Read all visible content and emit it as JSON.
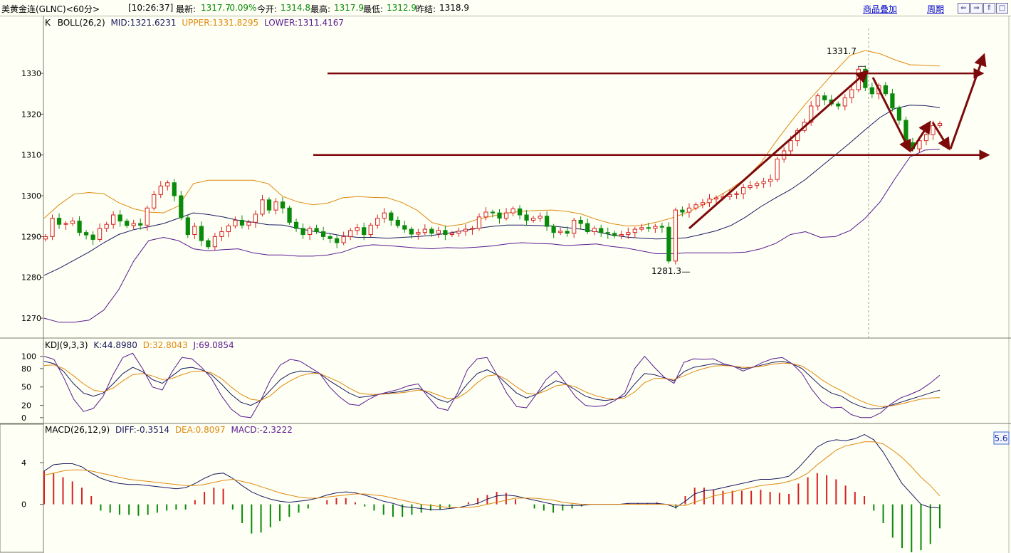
{
  "header": {
    "instrument": "美黄金连(GLNC)<60分>",
    "time": "[10:26:37]",
    "latest_label": "最新:",
    "latest_value": "1317.7",
    "change": "-0.09%",
    "open_label": "今开:",
    "open_value": "1314.8",
    "high_label": "最高:",
    "high_value": "1317.9",
    "low_label": "最低:",
    "low_value": "1312.9",
    "prev_label": "昨结:",
    "prev_value": "1318.9",
    "overlay_link": "商品叠加",
    "period_link": "周期",
    "buttons": [
      "⇐",
      "⇒",
      "⇑",
      "□"
    ]
  },
  "colors": {
    "bg": "#fefff5",
    "grid": "#c8c8b0",
    "up": "#d82020",
    "down": "#0a8a0a",
    "mid": "#1a1a60",
    "upper": "#e08a10",
    "lower": "#5a1a90",
    "arrow": "#7d0a0a"
  },
  "chart_data": [
    {
      "type": "candlestick",
      "indicator": "K",
      "legend": {
        "name": "K",
        "boll": "BOLL(26,2)",
        "mid": "MID:1321.6231",
        "upper": "UPPER:1331.8295",
        "lower": "LOWER:1311.4167"
      },
      "y_ticks": [
        1270,
        1280,
        1290,
        1300,
        1310,
        1320,
        1330
      ],
      "ylim": [
        1266,
        1341
      ],
      "annotations": [
        {
          "text": "1331.7",
          "value": 1331.7
        },
        {
          "text": "1281.3",
          "value": 1281.3
        }
      ],
      "horizontal_lines": [
        1330,
        1310
      ],
      "series": [
        {
          "name": "MID",
          "values": [
            1280.5,
            1282.2,
            1284.2,
            1286.2,
            1288.5,
            1290.5,
            1291.7,
            1292.4,
            1293.2,
            1294.5,
            1295.8,
            1295.4,
            1294.8,
            1294.0,
            1293.5,
            1292.9,
            1292.8,
            1292.0,
            1291.3,
            1290.8,
            1290.2,
            1289.8,
            1289.8,
            1289.6,
            1289.8,
            1290.0,
            1290.3,
            1290.8,
            1291.4,
            1292.0,
            1292.5,
            1292.8,
            1292.8,
            1292.7,
            1292.6,
            1292.2,
            1291.8,
            1291.2,
            1290.4,
            1289.9,
            1289.6,
            1289.4,
            1289.5,
            1289.7,
            1290.5,
            1291.4,
            1292.7,
            1294.8,
            1297.3,
            1299.5,
            1301.5,
            1304.0,
            1307.0,
            1310.0,
            1313.0,
            1316.2,
            1319.2,
            1321.4,
            1322.2,
            1322.1,
            1321.6
          ]
        },
        {
          "name": "UPPER",
          "values": [
            1294.5,
            1297.8,
            1300.4,
            1300.8,
            1300.5,
            1298.3,
            1296.8,
            1296.0,
            1295.8,
            1297.5,
            1303.0,
            1303.8,
            1303.8,
            1303.8,
            1303.8,
            1303.0,
            1299.8,
            1298.5,
            1297.8,
            1298.2,
            1299.5,
            1299.8,
            1299.6,
            1299.5,
            1298.3,
            1296.4,
            1293.4,
            1292.5,
            1293.0,
            1294.2,
            1295.0,
            1295.8,
            1296.2,
            1296.4,
            1296.5,
            1296.2,
            1295.5,
            1294.2,
            1293.2,
            1292.6,
            1292.7,
            1293.5,
            1294.5,
            1295.8,
            1297.5,
            1299.5,
            1301.7,
            1304.3,
            1308.0,
            1313.2,
            1318.0,
            1322.5,
            1326.5,
            1330.6,
            1334.4,
            1335.6,
            1334.8,
            1333.3,
            1332.1,
            1332.0,
            1331.8
          ]
        },
        {
          "name": "LOWER",
          "values": [
            1270.0,
            1269.0,
            1269.0,
            1269.5,
            1272.0,
            1277.0,
            1284.0,
            1289.0,
            1289.8,
            1289.0,
            1287.0,
            1286.5,
            1286.8,
            1287.0,
            1286.0,
            1285.5,
            1285.5,
            1285.2,
            1285.2,
            1285.5,
            1286.2,
            1287.5,
            1288.0,
            1287.8,
            1287.5,
            1287.2,
            1287.0,
            1287.3,
            1287.2,
            1287.4,
            1287.7,
            1288.2,
            1288.5,
            1288.3,
            1288.2,
            1287.8,
            1288.0,
            1288.2,
            1287.6,
            1287.2,
            1286.5,
            1285.8,
            1285.8,
            1286.0,
            1286.0,
            1286.0,
            1286.0,
            1286.2,
            1287.0,
            1288.3,
            1290.5,
            1291.2,
            1289.8,
            1290.0,
            1291.5,
            1294.5,
            1298.5,
            1304.2,
            1309.5,
            1311.2,
            1311.4
          ]
        },
        {
          "name": "close",
          "values": [
            1290.0,
            1294.5,
            1293.0,
            1293.2,
            1293.8,
            1291.0,
            1290.4,
            1289.3,
            1292.0,
            1293.0,
            1295.3,
            1293.8,
            1292.7,
            1293.2,
            1292.8,
            1297.0,
            1300.3,
            1302.4,
            1303.2,
            1300.0,
            1294.6,
            1290.5,
            1292.5,
            1289.0,
            1287.5,
            1290.0,
            1291.2,
            1292.6,
            1294.0,
            1292.8,
            1293.5,
            1295.5,
            1299.0,
            1296.5,
            1298.5,
            1297.0,
            1293.5,
            1292.0,
            1290.5,
            1292.0,
            1291.2,
            1290.0,
            1289.5,
            1288.5,
            1290.0,
            1291.5,
            1292.2,
            1290.5,
            1292.8,
            1294.5,
            1295.8,
            1294.0,
            1292.7,
            1291.8,
            1290.6,
            1291.0,
            1291.8,
            1290.8,
            1291.5,
            1290.5,
            1290.8,
            1291.3,
            1291.8,
            1292.0,
            1294.8,
            1296.0,
            1295.8,
            1294.5,
            1295.8,
            1296.8,
            1295.3,
            1294.0,
            1294.5,
            1295.0,
            1292.5,
            1291.0,
            1291.3,
            1290.8,
            1294.0,
            1293.2,
            1291.2,
            1292.0,
            1291.0,
            1290.8,
            1290.2,
            1290.5,
            1291.0,
            1291.8,
            1292.2,
            1292.0,
            1292.5,
            1292.3,
            1284.0,
            1296.5,
            1296.0,
            1297.0,
            1297.8,
            1298.3,
            1299.2,
            1299.5,
            1299.8,
            1300.3,
            1300.5,
            1302.0,
            1302.5,
            1303.0,
            1303.5,
            1304.0,
            1309.0,
            1311.0,
            1313.5,
            1316.0,
            1318.0,
            1322.0,
            1324.5,
            1323.5,
            1322.5,
            1322.0,
            1324.0,
            1326.0,
            1331.0,
            1326.5,
            1325.0,
            1327.0,
            1325.0,
            1321.5,
            1318.5,
            1313.0,
            1311.5,
            1313.5,
            1315.0,
            1317.2,
            1317.7
          ]
        }
      ]
    },
    {
      "type": "line",
      "indicator": "KDJ",
      "legend": {
        "name": "KDJ(9,3,3)",
        "k": "K:44.8980",
        "d": "D:32.8043",
        "j": "J:69.0854"
      },
      "y_ticks": [
        0,
        20,
        50,
        80,
        100
      ],
      "ylim": [
        -6,
        110
      ],
      "series": [
        {
          "name": "K",
          "values": [
            92,
            88,
            75,
            55,
            40,
            35,
            40,
            55,
            72,
            82,
            75,
            62,
            56,
            68,
            80,
            82,
            78,
            70,
            55,
            38,
            25,
            20,
            28,
            45,
            62,
            72,
            76,
            75,
            72,
            60,
            50,
            40,
            33,
            35,
            38,
            40,
            42,
            45,
            48,
            40,
            30,
            25,
            35,
            55,
            72,
            78,
            70,
            55,
            40,
            32,
            38,
            50,
            60,
            55,
            45,
            35,
            30,
            28,
            30,
            35,
            55,
            72,
            70,
            65,
            60,
            75,
            82,
            85,
            88,
            86,
            84,
            80,
            82,
            86,
            90,
            92,
            88,
            80,
            65,
            50,
            40,
            35,
            25,
            18,
            14,
            15,
            20,
            25,
            30,
            35,
            40,
            44.9
          ]
        },
        {
          "name": "D",
          "values": [
            85,
            86,
            80,
            68,
            55,
            45,
            42,
            48,
            60,
            70,
            72,
            68,
            62,
            64,
            70,
            75,
            76,
            73,
            64,
            50,
            38,
            30,
            28,
            36,
            50,
            60,
            68,
            72,
            72,
            65,
            58,
            48,
            40,
            38,
            38,
            39,
            40,
            42,
            45,
            43,
            37,
            31,
            32,
            42,
            57,
            68,
            70,
            62,
            50,
            40,
            38,
            44,
            52,
            54,
            50,
            42,
            36,
            32,
            30,
            32,
            42,
            57,
            64,
            64,
            62,
            68,
            75,
            80,
            84,
            85,
            84,
            82,
            82,
            84,
            87,
            89,
            88,
            84,
            74,
            62,
            52,
            44,
            35,
            27,
            21,
            18,
            19,
            22,
            26,
            30,
            32,
            32.8
          ]
        },
        {
          "name": "J",
          "values": [
            100,
            95,
            65,
            30,
            10,
            15,
            35,
            70,
            98,
            105,
            80,
            50,
            45,
            75,
            98,
            96,
            82,
            64,
            36,
            14,
            2,
            0,
            28,
            62,
            86,
            95,
            92,
            82,
            72,
            50,
            34,
            22,
            20,
            30,
            38,
            42,
            46,
            52,
            55,
            34,
            16,
            12,
            40,
            78,
            96,
            98,
            70,
            40,
            18,
            16,
            38,
            62,
            76,
            56,
            34,
            20,
            18,
            20,
            28,
            40,
            80,
            100,
            82,
            66,
            56,
            90,
            96,
            95,
            96,
            88,
            84,
            76,
            82,
            90,
            96,
            98,
            88,
            72,
            46,
            26,
            16,
            17,
            5,
            0,
            0,
            8,
            22,
            32,
            38,
            45,
            56,
            69.1
          ]
        }
      ]
    },
    {
      "type": "bar",
      "indicator": "MACD",
      "legend": {
        "name": "MACD(26,12,9)",
        "diff": "DIFF:-0.3514",
        "dea": "DEA:0.8097",
        "macd": "MACD:-2.3222"
      },
      "y_ticks": [
        0,
        4
      ],
      "ylim": [
        -4.6,
        6.6
      ],
      "side_label": "5.6",
      "series": [
        {
          "name": "DIFF",
          "values": [
            3.2,
            3.8,
            3.9,
            3.9,
            3.6,
            3.0,
            2.5,
            2.2,
            2.0,
            1.9,
            1.9,
            1.8,
            1.7,
            1.6,
            1.5,
            1.6,
            2.0,
            2.5,
            2.9,
            3.0,
            2.5,
            1.8,
            1.2,
            0.8,
            0.5,
            0.3,
            0.2,
            0.3,
            0.4,
            0.6,
            0.9,
            1.1,
            1.2,
            1.1,
            0.9,
            0.6,
            0.3,
            0.1,
            -0.2,
            -0.3,
            -0.4,
            -0.5,
            -0.5,
            -0.4,
            -0.3,
            -0.1,
            0.1,
            0.5,
            0.8,
            0.9,
            0.8,
            0.6,
            0.4,
            0.2,
            0.0,
            -0.1,
            -0.1,
            -0.1,
            0.0,
            0.0,
            0.0,
            0.0,
            0.1,
            0.1,
            0.1,
            0.1,
            0.0,
            -0.3,
            0.3,
            1.0,
            1.3,
            1.4,
            1.6,
            1.8,
            2.0,
            2.2,
            2.4,
            2.4,
            2.5,
            2.7,
            3.5,
            4.5,
            5.5,
            6.0,
            6.2,
            6.1,
            6.3,
            6.7,
            6.2,
            5.0,
            3.5,
            2.0,
            1.0,
            0.0,
            -0.3,
            -0.35
          ]
        },
        {
          "name": "DEA",
          "values": [
            2.8,
            3.0,
            3.2,
            3.3,
            3.3,
            3.2,
            3.0,
            2.8,
            2.6,
            2.4,
            2.3,
            2.2,
            2.1,
            2.0,
            1.9,
            1.8,
            1.8,
            1.9,
            2.1,
            2.3,
            2.4,
            2.2,
            2.0,
            1.7,
            1.4,
            1.1,
            0.9,
            0.7,
            0.6,
            0.6,
            0.7,
            0.8,
            0.9,
            1.0,
            1.0,
            0.9,
            0.8,
            0.6,
            0.4,
            0.2,
            0.0,
            -0.1,
            -0.2,
            -0.3,
            -0.3,
            -0.3,
            -0.2,
            0.0,
            0.2,
            0.4,
            0.6,
            0.6,
            0.6,
            0.5,
            0.4,
            0.2,
            0.1,
            0.0,
            0.0,
            0.0,
            0.0,
            0.0,
            0.0,
            0.0,
            0.0,
            0.0,
            0.0,
            -0.1,
            -0.1,
            0.2,
            0.5,
            0.8,
            1.0,
            1.2,
            1.4,
            1.6,
            1.8,
            1.9,
            2.0,
            2.2,
            2.5,
            3.0,
            3.8,
            4.5,
            5.2,
            5.6,
            5.8,
            6.0,
            6.0,
            5.8,
            5.2,
            4.5,
            3.6,
            2.6,
            1.8,
            0.81
          ]
        },
        {
          "name": "MACD",
          "values": [
            3.2,
            3.0,
            2.6,
            2.2,
            1.6,
            0.8,
            -0.6,
            -0.8,
            -1.0,
            -1.0,
            -1.1,
            -1.0,
            -0.8,
            -0.6,
            -0.5,
            -0.5,
            0.4,
            1.2,
            1.6,
            1.5,
            -0.5,
            -1.8,
            -2.8,
            -2.7,
            -2.2,
            -1.6,
            -1.2,
            -0.8,
            -0.4,
            0.0,
            0.4,
            0.6,
            0.6,
            0.2,
            -0.2,
            -0.6,
            -1.0,
            -1.2,
            -1.2,
            -1.0,
            -0.8,
            -0.6,
            -0.5,
            -0.3,
            0.0,
            0.2,
            0.6,
            0.9,
            1.2,
            1.1,
            0.5,
            0.0,
            -0.4,
            -0.6,
            -0.8,
            -0.6,
            -0.4,
            -0.2,
            0.0,
            0.0,
            0.0,
            0.0,
            0.1,
            0.1,
            0.1,
            0.2,
            0.0,
            -0.4,
            0.8,
            1.6,
            1.6,
            1.4,
            1.3,
            1.3,
            1.3,
            1.3,
            1.4,
            1.2,
            1.1,
            1.0,
            2.0,
            2.6,
            3.0,
            2.8,
            2.4,
            1.8,
            1.2,
            0.8,
            -0.6,
            -1.8,
            -3.2,
            -4.2,
            -4.6,
            -4.4,
            -3.8,
            -2.3
          ]
        }
      ]
    }
  ]
}
